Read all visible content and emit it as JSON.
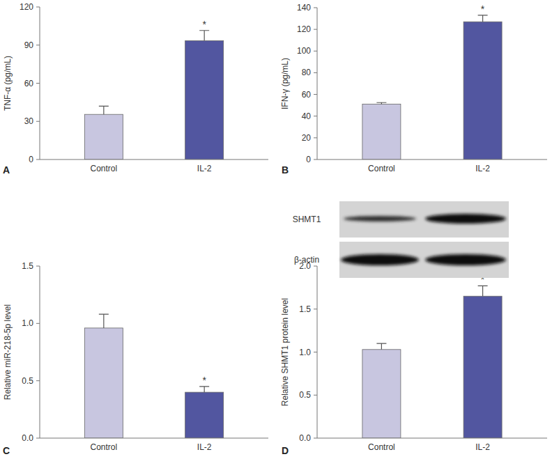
{
  "chart_data": [
    {
      "type": "bar",
      "panel_label": "A",
      "categories": [
        "Control",
        "IL-2"
      ],
      "values": [
        35.5,
        93.5
      ],
      "errors": [
        6.5,
        8
      ],
      "colors": [
        "#c8c6e0",
        "#5256a0"
      ],
      "ylabel": "TNF-α (pg/mL)",
      "ylim": [
        0,
        120
      ],
      "yticks": [
        0,
        30,
        60,
        90,
        120
      ],
      "annotations": [
        {
          "category": 1,
          "text": "*"
        }
      ]
    },
    {
      "type": "bar",
      "panel_label": "B",
      "categories": [
        "Control",
        "IL-2"
      ],
      "values": [
        51,
        127
      ],
      "errors": [
        1.5,
        6
      ],
      "colors": [
        "#c8c6e0",
        "#5256a0"
      ],
      "ylabel": "IFN-γ (pg/mL)",
      "ylim": [
        0,
        140
      ],
      "yticks": [
        0,
        20,
        40,
        60,
        80,
        100,
        120,
        140
      ],
      "annotations": [
        {
          "category": 1,
          "text": "*"
        }
      ]
    },
    {
      "type": "bar",
      "panel_label": "C",
      "categories": [
        "Control",
        "IL-2"
      ],
      "values": [
        0.96,
        0.4
      ],
      "errors": [
        0.12,
        0.05
      ],
      "colors": [
        "#c8c6e0",
        "#5256a0"
      ],
      "ylabel": "Relative miR-218-5p level",
      "ylim": [
        0,
        1.5
      ],
      "yticks": [
        {
          "value": 0,
          "label": "0.0"
        },
        0.5,
        {
          "value": 1,
          "label": "1.0"
        },
        1.5
      ],
      "annotations": [
        {
          "category": 1,
          "text": "*"
        }
      ]
    },
    {
      "type": "bar",
      "panel_label": "D",
      "categories": [
        "Control",
        "IL-2"
      ],
      "values": [
        1.03,
        1.65
      ],
      "errors": [
        0.07,
        0.12
      ],
      "colors": [
        "#c8c6e0",
        "#5256a0"
      ],
      "ylabel": "Relative SHMT1 protein level",
      "ylim": [
        0,
        2.0
      ],
      "yticks": [
        {
          "value": 0,
          "label": "0.0"
        },
        0.5,
        {
          "value": 1,
          "label": "1.0"
        },
        1.5,
        {
          "value": 2,
          "label": "2.0"
        }
      ],
      "annotations": [
        {
          "category": 1,
          "text": "*"
        }
      ],
      "blot_labels": [
        "SHMT1",
        "β-actin"
      ]
    }
  ]
}
